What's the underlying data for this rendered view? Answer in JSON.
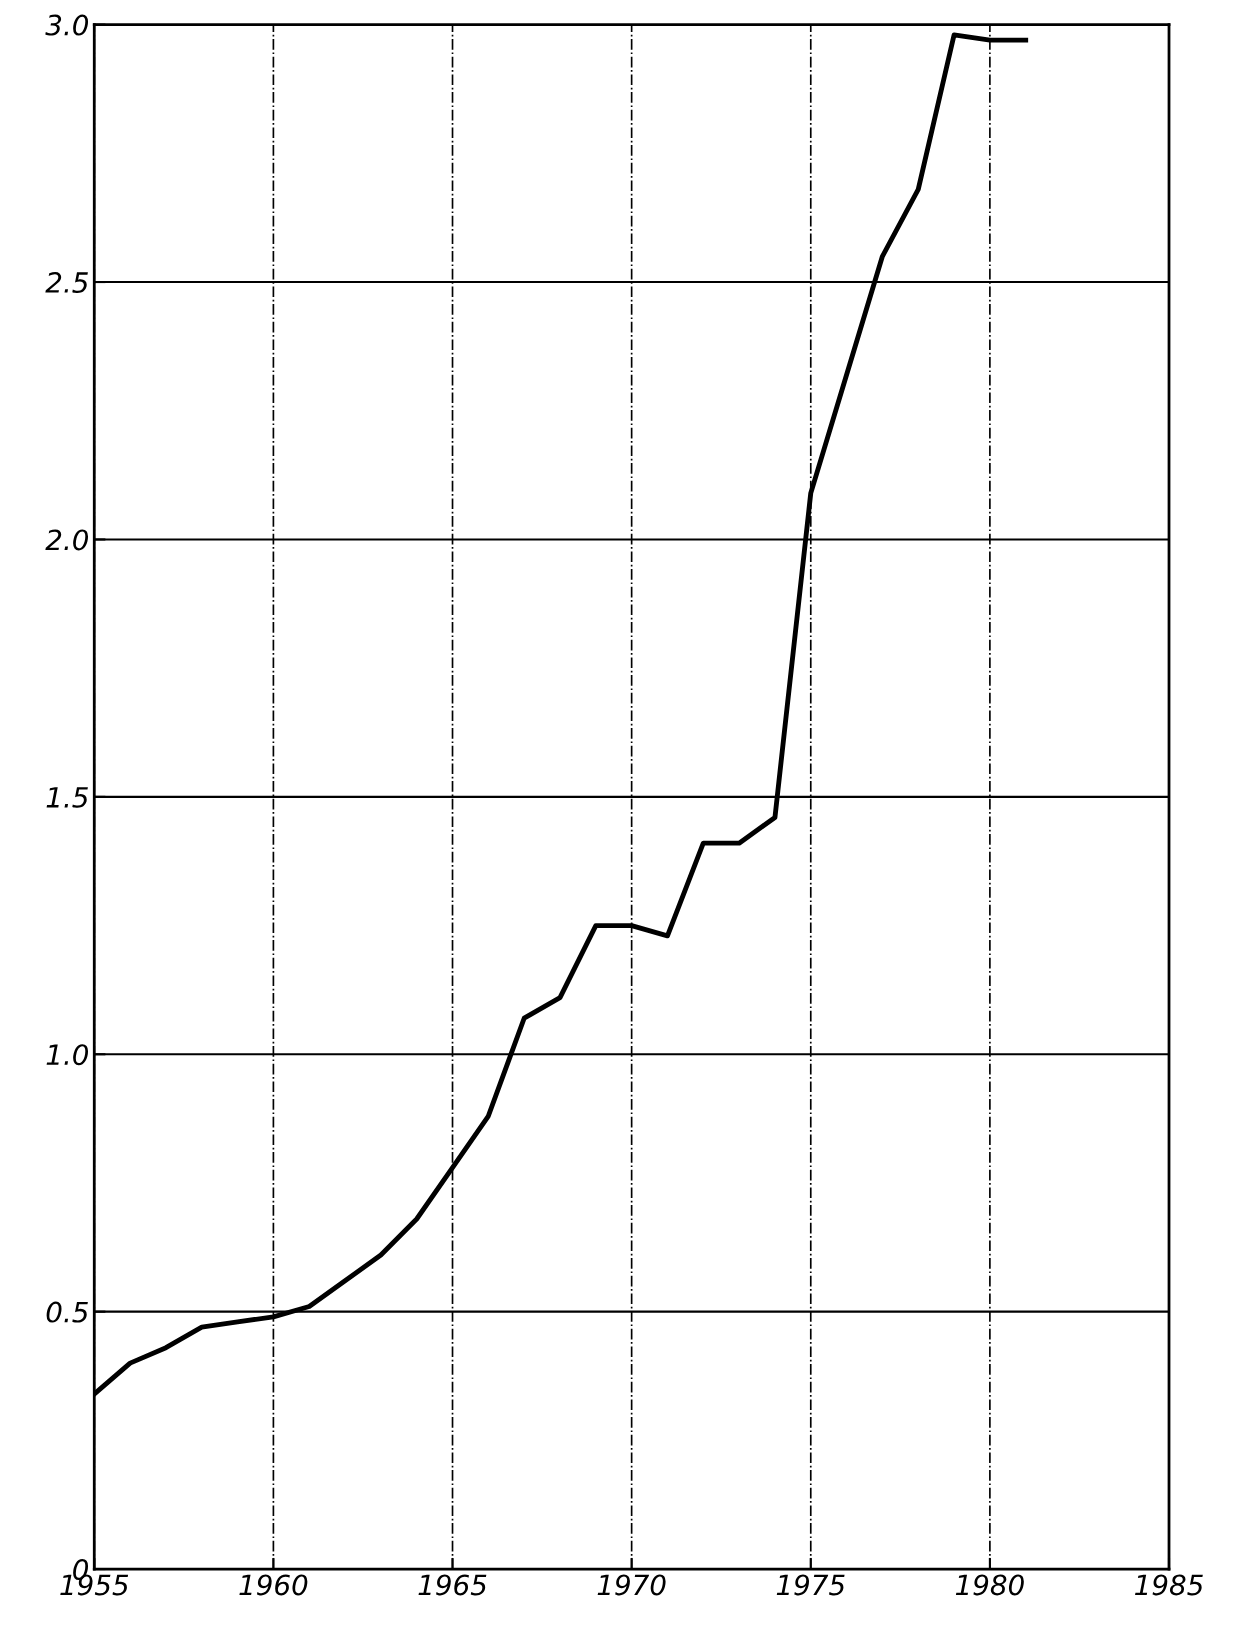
{
  "chart_data": {
    "type": "line",
    "x": [
      1955,
      1956,
      1957,
      1958,
      1959,
      1960,
      1961,
      1962,
      1963,
      1964,
      1965,
      1966,
      1967,
      1968,
      1969,
      1970,
      1971,
      1972,
      1973,
      1974,
      1975,
      1976,
      1977,
      1978,
      1979,
      1980,
      1981
    ],
    "series": [
      {
        "color": "#000000",
        "values": [
          0.34,
          0.4,
          0.43,
          0.47,
          0.48,
          0.49,
          0.51,
          0.56,
          0.61,
          0.68,
          0.78,
          0.88,
          1.07,
          1.11,
          1.25,
          1.25,
          1.23,
          1.41,
          1.41,
          1.46,
          2.09,
          2.32,
          2.55,
          2.68,
          2.98,
          2.97,
          2.97
        ]
      }
    ],
    "xlim": [
      1955,
      1985
    ],
    "xticks": [
      1955,
      1960,
      1965,
      1970,
      1975,
      1980,
      1985
    ],
    "ylim": [
      0,
      3.0
    ],
    "yticks": [
      0,
      0.5,
      {
        "value": 1.0,
        "label": "1.0"
      },
      1.5,
      {
        "value": 2.0,
        "label": "2.0"
      },
      2.5,
      {
        "value": 3.0,
        "label": "3.0"
      }
    ],
    "grid": true,
    "marker": "none",
    "line_style": "solid"
  }
}
